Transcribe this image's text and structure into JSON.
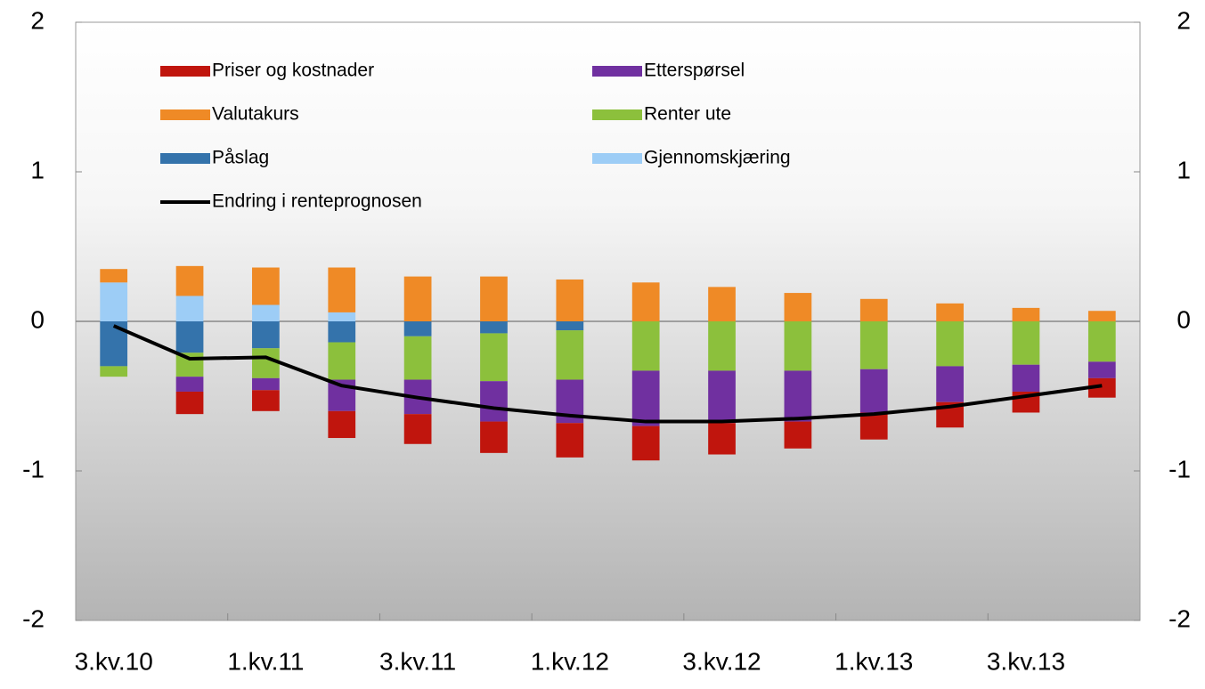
{
  "chart_data": {
    "type": "bar",
    "categories": [
      "3.kv.10",
      null,
      "1.kv.11",
      null,
      "3.kv.11",
      null,
      "1.kv.12",
      null,
      "3.kv.12",
      null,
      "1.kv.13",
      null,
      "3.kv.13",
      null
    ],
    "series": [
      {
        "name": "Priser og kostnader",
        "color": "#c0150d",
        "values": [
          0,
          -0.15,
          -0.14,
          -0.18,
          -0.2,
          -0.21,
          -0.23,
          -0.23,
          -0.21,
          -0.18,
          -0.18,
          -0.17,
          -0.14,
          -0.13
        ]
      },
      {
        "name": "Etterspørsel",
        "color": "#7030a0",
        "values": [
          0,
          -0.1,
          -0.08,
          -0.21,
          -0.23,
          -0.27,
          -0.29,
          -0.37,
          -0.35,
          -0.34,
          -0.29,
          -0.24,
          -0.18,
          -0.11
        ]
      },
      {
        "name": "Valutakurs",
        "color": "#ef8a26",
        "values": [
          0.09,
          0.2,
          0.25,
          0.3,
          0.3,
          0.3,
          0.28,
          0.26,
          0.23,
          0.19,
          0.15,
          0.12,
          0.09,
          0.07
        ]
      },
      {
        "name": "Renter ute",
        "color": "#8cc03c",
        "values": [
          -0.07,
          -0.16,
          -0.2,
          -0.25,
          -0.29,
          -0.32,
          -0.33,
          -0.33,
          -0.33,
          -0.33,
          -0.32,
          -0.3,
          -0.29,
          -0.27
        ]
      },
      {
        "name": "Påslag",
        "color": "#3473ab",
        "values": [
          -0.3,
          -0.21,
          -0.18,
          -0.14,
          -0.1,
          -0.08,
          -0.06,
          0,
          0,
          0,
          0,
          0,
          0,
          0
        ]
      },
      {
        "name": "Gjennomskjæring",
        "color": "#9dcdf6",
        "values": [
          0.26,
          0.17,
          0.11,
          0.06,
          0,
          0,
          0,
          0,
          0,
          0,
          0,
          0,
          0,
          0
        ]
      },
      {
        "name": "Endring i renteprognosen",
        "color": "#000000",
        "type": "line",
        "values": [
          -0.03,
          -0.25,
          -0.24,
          -0.43,
          -0.51,
          -0.58,
          -0.63,
          -0.67,
          -0.67,
          -0.65,
          -0.62,
          -0.57,
          -0.5,
          -0.43
        ]
      }
    ],
    "ylim": [
      -2,
      2
    ],
    "yticks": [
      -2,
      -1,
      0,
      1,
      2
    ],
    "y2lim": [
      -2,
      2
    ],
    "y2ticks": [
      -2,
      -1,
      0,
      1,
      2
    ]
  }
}
